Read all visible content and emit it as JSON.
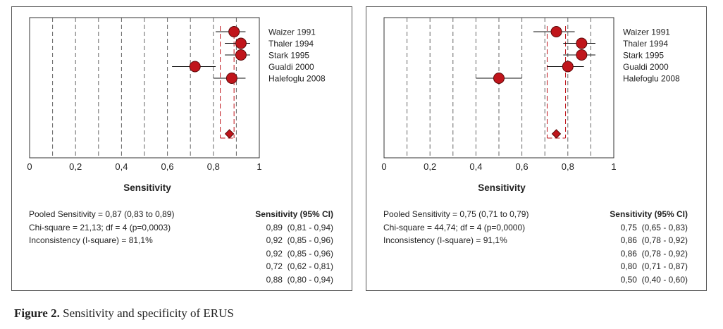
{
  "caption": {
    "label": "Figure 2.",
    "text": " Sensitivity and specificity of ERUS"
  },
  "chart_data": [
    {
      "type": "forest",
      "xlabel": "Sensitivity",
      "xlim": [
        0,
        1
      ],
      "x_ticks": [
        "0",
        "0,2",
        "0,4",
        "0,6",
        "0,8",
        "1"
      ],
      "studies": [
        "Waizer 1991",
        "Thaler 1994",
        "Stark 1995",
        "Gualdi 2000",
        "Halefoglu 2008"
      ],
      "estimates": [
        0.89,
        0.92,
        0.92,
        0.72,
        0.88
      ],
      "ci_low": [
        0.81,
        0.85,
        0.85,
        0.62,
        0.8
      ],
      "ci_high": [
        0.94,
        0.96,
        0.96,
        0.81,
        0.94
      ],
      "pooled": {
        "value": 0.87,
        "low": 0.83,
        "high": 0.89
      },
      "stats": [
        "Pooled Sensitivity = 0,87 (0,83 to 0,89)",
        "Chi-square = 21,13; df = 4 (p=0,0003)",
        "Inconsistency (I-square) = 81,1%"
      ],
      "ci_header": "Sensitivity (95% CI)",
      "ci_rows": [
        "0,89  (0,81 - 0,94)",
        "0,92  (0,85 - 0,96)",
        "0,92  (0,85 - 0,96)",
        "0,72  (0,62 - 0,81)",
        "0,88  (0,80 - 0,94)"
      ],
      "marker_color": "#c0151b",
      "line_color": "#c0151b"
    },
    {
      "type": "forest",
      "xlabel": "Sensitivity",
      "xlim": [
        0,
        1
      ],
      "x_ticks": [
        "0",
        "0,2",
        "0,4",
        "0,6",
        "0,8",
        "1"
      ],
      "studies": [
        "Waizer 1991",
        "Thaler 1994",
        "Stark 1995",
        "Gualdi 2000",
        "Halefoglu 2008"
      ],
      "estimates": [
        0.75,
        0.86,
        0.86,
        0.8,
        0.5
      ],
      "ci_low": [
        0.65,
        0.78,
        0.78,
        0.71,
        0.4
      ],
      "ci_high": [
        0.83,
        0.92,
        0.92,
        0.87,
        0.6
      ],
      "pooled": {
        "value": 0.75,
        "low": 0.71,
        "high": 0.79
      },
      "stats": [
        "Pooled Sensitivity = 0,75 (0,71 to 0,79)",
        "Chi-square = 44,74; df = 4 (p=0,0000)",
        "Inconsistency (I-square) = 91,1%"
      ],
      "ci_header": "Sensitivity (95% CI)",
      "ci_rows": [
        "0,75  (0,65 - 0,83)",
        "0,86  (0,78 - 0,92)",
        "0,86  (0,78 - 0,92)",
        "0,80  (0,71 - 0,87)",
        "0,50  (0,40 - 0,60)"
      ],
      "marker_color": "#c0151b",
      "line_color": "#c0151b"
    }
  ]
}
